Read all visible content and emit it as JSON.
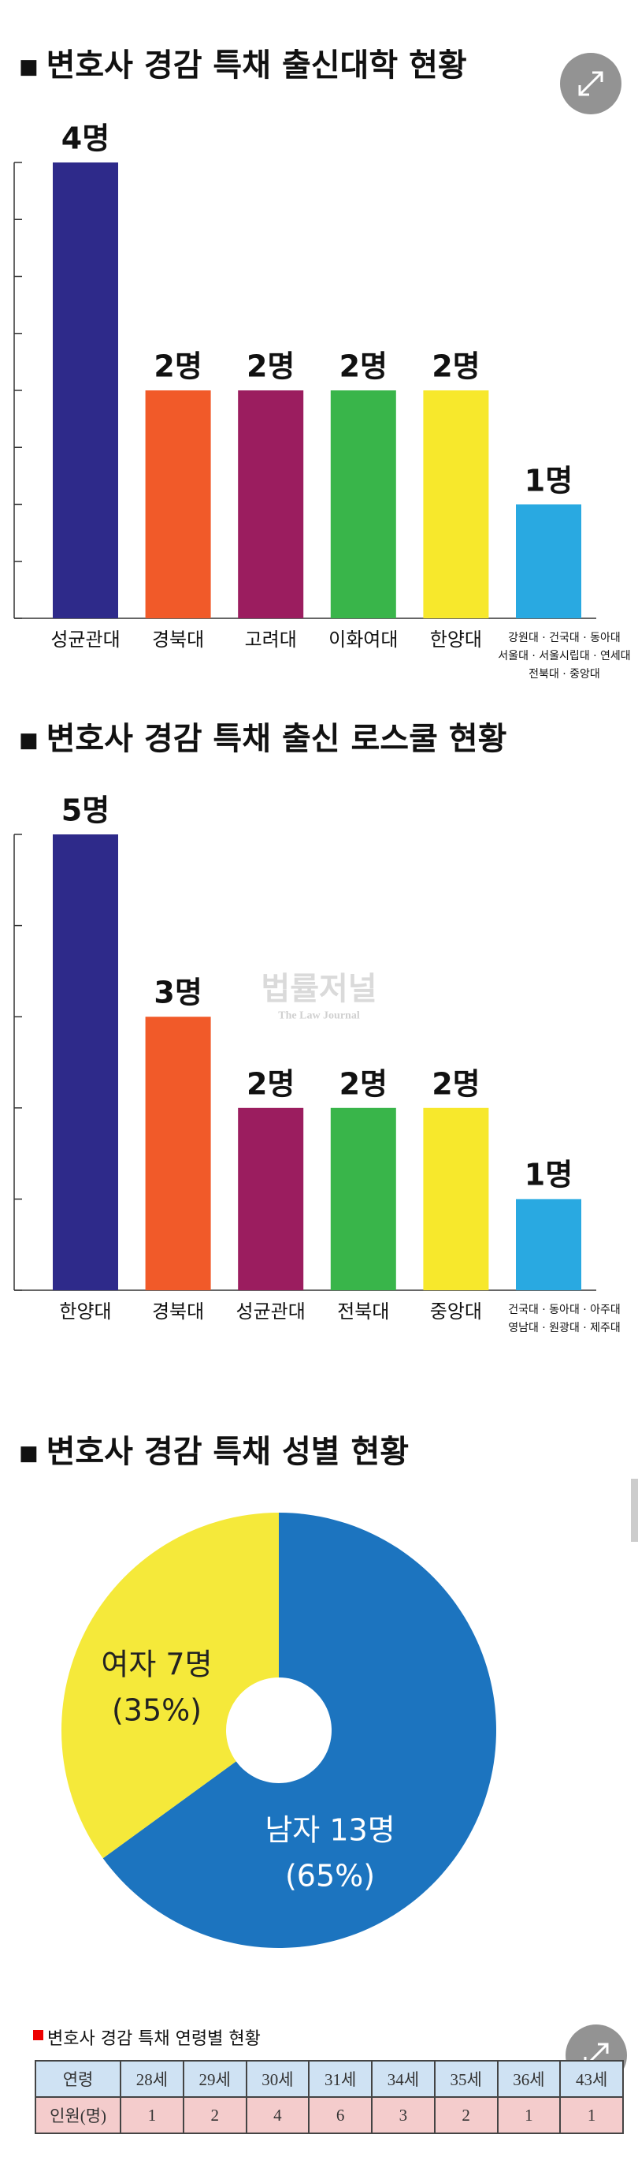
{
  "chart_data": [
    {
      "type": "bar",
      "title": "변호사 경감 특채 출신대학 현황",
      "categories": [
        "성균관대",
        "경북대",
        "고려대",
        "이화여대",
        "한양대",
        "강원대 · 건국대 · 동아대\n서울대 · 서울시립대 · 연세대\n전북대 · 중앙대"
      ],
      "values": [
        4,
        2,
        2,
        2,
        2,
        1
      ],
      "value_labels": [
        "4명",
        "2명",
        "2명",
        "2명",
        "2명",
        "1명"
      ],
      "colors": [
        "#2e2a8a",
        "#f15a29",
        "#9b1d5f",
        "#39b54a",
        "#f7e82c",
        "#29a9e1"
      ],
      "ylim": [
        0,
        4
      ],
      "yticks": [
        0,
        0.5,
        1,
        1.5,
        2,
        2.5,
        3,
        3.5,
        4
      ]
    },
    {
      "type": "bar",
      "title": "변호사 경감 특채 출신 로스쿨 현황",
      "categories": [
        "한양대",
        "경북대",
        "성균관대",
        "전북대",
        "중앙대",
        "건국대 · 동아대 · 아주대\n영남대 · 원광대 · 제주대"
      ],
      "values": [
        5,
        3,
        2,
        2,
        2,
        1
      ],
      "value_labels": [
        "5명",
        "3명",
        "2명",
        "2명",
        "2명",
        "1명"
      ],
      "colors": [
        "#2e2a8a",
        "#f15a29",
        "#9b1d5f",
        "#39b54a",
        "#f7e82c",
        "#29a9e1"
      ],
      "ylim": [
        0,
        5
      ],
      "yticks": [
        0,
        1,
        2,
        3,
        4,
        5
      ],
      "watermark": "법률저널",
      "watermark_subtitle": "The Law Journal"
    },
    {
      "type": "pie",
      "title": "변호사 경감 특채 성별 현황",
      "categories": [
        "남자 13명",
        "여자 7명"
      ],
      "values": [
        65,
        35
      ],
      "value_labels": [
        "(65%)",
        "(35%)"
      ],
      "colors": [
        "#1c74bf",
        "#f5e93a"
      ]
    }
  ],
  "table": {
    "title": "변호사 경감 특채 연령별 현황",
    "rows": [
      [
        "연령",
        "28세",
        "29세",
        "30세",
        "31세",
        "34세",
        "35세",
        "36세",
        "43세"
      ],
      [
        "인원(명)",
        1,
        2,
        4,
        6,
        3,
        2,
        1,
        1
      ]
    ]
  }
}
